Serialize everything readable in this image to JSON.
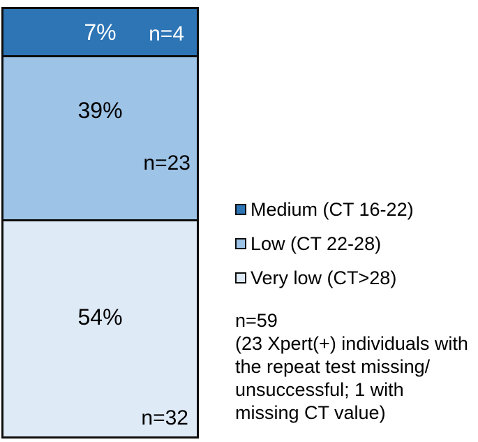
{
  "chart_data": {
    "type": "bar",
    "subtype": "stacked-column-100pct",
    "title": "",
    "xlabel": "",
    "ylabel": "",
    "grid": false,
    "legend_position": "right",
    "categories": [
      ""
    ],
    "series": [
      {
        "name": "Medium (CT 16-22)",
        "value_percent": 7,
        "n": 4,
        "percent_label": "7%",
        "count_label": "n=4",
        "color": "#2E75B6"
      },
      {
        "name": "Low (CT 22-28)",
        "value_percent": 39,
        "n": 23,
        "percent_label": "39%",
        "count_label": "n=23",
        "color": "#9DC3E6"
      },
      {
        "name": "Very low (CT>28)",
        "value_percent": 54,
        "n": 32,
        "percent_label": "54%",
        "count_label": "n=32",
        "color": "#DEEAF6"
      }
    ],
    "total_label": "n=59",
    "annotation": "n=59 (23 Xpert(+) individuals with the repeat test missing/unsuccessful; 1 with missing CT value)"
  },
  "bar": {
    "border_color": "#0d0d0d",
    "segments": [
      {
        "percent_label": "7%",
        "count_label": "n=4",
        "color": "#2E75B6",
        "text_color": "#ffffff"
      },
      {
        "percent_label": "39%",
        "count_label": "n=23",
        "color": "#9DC3E6",
        "text_color": "#000000"
      },
      {
        "percent_label": "54%",
        "count_label": "n=32",
        "color": "#DEEAF6",
        "text_color": "#000000"
      }
    ]
  },
  "legend": {
    "items": [
      {
        "label": "Medium (CT 16-22)",
        "color": "#2E75B6"
      },
      {
        "label": "Low (CT 22-28)",
        "color": "#9DC3E6"
      },
      {
        "label": "Very low (CT>28)",
        "color": "#DEEAF6"
      }
    ]
  },
  "note": {
    "lines": [
      "n=59",
      "(23 Xpert(+) individuals with",
      "the repeat test missing/",
      "unsuccessful; 1 with",
      "missing CT value)"
    ]
  }
}
